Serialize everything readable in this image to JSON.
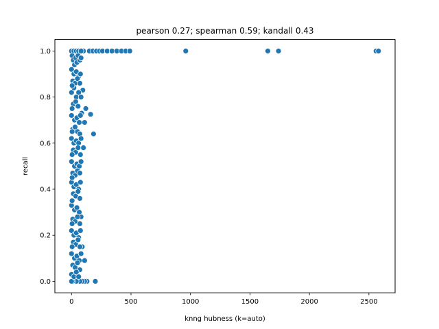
{
  "chart_data": {
    "type": "scatter",
    "title": "pearson 0.27; spearman 0.59; kandall 0.43",
    "xlabel": "knng hubness (k=auto)",
    "ylabel": "recall",
    "xlim": [
      -140,
      2720
    ],
    "ylim": [
      -0.05,
      1.05
    ],
    "xticks": [
      0,
      500,
      1000,
      1500,
      2000,
      2500
    ],
    "yticks": [
      0.0,
      0.2,
      0.4,
      0.6,
      0.8,
      1.0
    ],
    "ytick_labels": [
      "0.0",
      "0.2",
      "0.4",
      "0.6",
      "0.8",
      "1.0"
    ],
    "grid": false,
    "marker_color": "#1f77b4",
    "points": [
      [
        960,
        1.0
      ],
      [
        1650,
        1.0
      ],
      [
        1740,
        1.0
      ],
      [
        2560,
        1.0
      ],
      [
        2580,
        1.0
      ],
      [
        100,
        1.0
      ],
      [
        150,
        1.0
      ],
      [
        180,
        1.0
      ],
      [
        210,
        1.0
      ],
      [
        235,
        1.0
      ],
      [
        260,
        1.0
      ],
      [
        300,
        1.0
      ],
      [
        340,
        1.0
      ],
      [
        380,
        1.0
      ],
      [
        420,
        1.0
      ],
      [
        455,
        1.0
      ],
      [
        490,
        1.0
      ],
      [
        0,
        1.0
      ],
      [
        20,
        1.0
      ],
      [
        40,
        1.0
      ],
      [
        60,
        1.0
      ],
      [
        80,
        1.0
      ],
      [
        160,
        0.725
      ],
      [
        185,
        0.64
      ],
      [
        120,
        0.75
      ],
      [
        110,
        0.69
      ],
      [
        95,
        0.83
      ],
      [
        100,
        0.58
      ],
      [
        90,
        0.15
      ],
      [
        110,
        0.09
      ],
      [
        200,
        0.0
      ],
      [
        130,
        0.0
      ],
      [
        110,
        0.0
      ],
      [
        90,
        0.0
      ],
      [
        70,
        0.0
      ],
      [
        40,
        0.0
      ],
      [
        10,
        0.0
      ],
      [
        0,
        0.0
      ],
      [
        5,
        0.98
      ],
      [
        15,
        0.96
      ],
      [
        25,
        0.94
      ],
      [
        35,
        0.97
      ],
      [
        45,
        0.95
      ],
      [
        55,
        0.98
      ],
      [
        70,
        0.96
      ],
      [
        80,
        0.97
      ],
      [
        0,
        0.92
      ],
      [
        20,
        0.9
      ],
      [
        40,
        0.91
      ],
      [
        60,
        0.89
      ],
      [
        75,
        0.9
      ],
      [
        10,
        0.87
      ],
      [
        30,
        0.86
      ],
      [
        50,
        0.88
      ],
      [
        70,
        0.86
      ],
      [
        0,
        0.82
      ],
      [
        20,
        0.84
      ],
      [
        40,
        0.8
      ],
      [
        60,
        0.82
      ],
      [
        80,
        0.8
      ],
      [
        15,
        0.77
      ],
      [
        35,
        0.78
      ],
      [
        55,
        0.76
      ],
      [
        85,
        0.73
      ],
      [
        0,
        0.72
      ],
      [
        25,
        0.7
      ],
      [
        45,
        0.71
      ],
      [
        65,
        0.69
      ],
      [
        75,
        0.72
      ],
      [
        10,
        0.66
      ],
      [
        30,
        0.67
      ],
      [
        50,
        0.65
      ],
      [
        70,
        0.64
      ],
      [
        0,
        0.62
      ],
      [
        20,
        0.6
      ],
      [
        40,
        0.61
      ],
      [
        60,
        0.6
      ],
      [
        80,
        0.62
      ],
      [
        15,
        0.57
      ],
      [
        35,
        0.56
      ],
      [
        55,
        0.58
      ],
      [
        75,
        0.55
      ],
      [
        0,
        0.52
      ],
      [
        25,
        0.5
      ],
      [
        45,
        0.51
      ],
      [
        65,
        0.5
      ],
      [
        80,
        0.52
      ],
      [
        10,
        0.47
      ],
      [
        30,
        0.46
      ],
      [
        50,
        0.48
      ],
      [
        70,
        0.47
      ],
      [
        0,
        0.43
      ],
      [
        20,
        0.41
      ],
      [
        40,
        0.42
      ],
      [
        60,
        0.4
      ],
      [
        75,
        0.43
      ],
      [
        15,
        0.38
      ],
      [
        35,
        0.37
      ],
      [
        55,
        0.39
      ],
      [
        70,
        0.36
      ],
      [
        0,
        0.33
      ],
      [
        25,
        0.31
      ],
      [
        45,
        0.32
      ],
      [
        65,
        0.3
      ],
      [
        80,
        0.28
      ],
      [
        10,
        0.27
      ],
      [
        30,
        0.26
      ],
      [
        50,
        0.28
      ],
      [
        70,
        0.25
      ],
      [
        0,
        0.22
      ],
      [
        20,
        0.2
      ],
      [
        40,
        0.21
      ],
      [
        60,
        0.19
      ],
      [
        75,
        0.22
      ],
      [
        15,
        0.17
      ],
      [
        35,
        0.16
      ],
      [
        55,
        0.18
      ],
      [
        70,
        0.15
      ],
      [
        0,
        0.12
      ],
      [
        25,
        0.1
      ],
      [
        45,
        0.11
      ],
      [
        65,
        0.09
      ],
      [
        80,
        0.12
      ],
      [
        10,
        0.07
      ],
      [
        30,
        0.06
      ],
      [
        50,
        0.08
      ],
      [
        70,
        0.05
      ],
      [
        0,
        0.03
      ],
      [
        20,
        0.02
      ],
      [
        40,
        0.04
      ],
      [
        60,
        0.02
      ],
      [
        5,
        0.55
      ],
      [
        5,
        0.35
      ],
      [
        5,
        0.75
      ],
      [
        5,
        0.25
      ],
      [
        5,
        0.45
      ],
      [
        5,
        0.65
      ],
      [
        5,
        0.15
      ],
      [
        5,
        0.85
      ]
    ]
  }
}
